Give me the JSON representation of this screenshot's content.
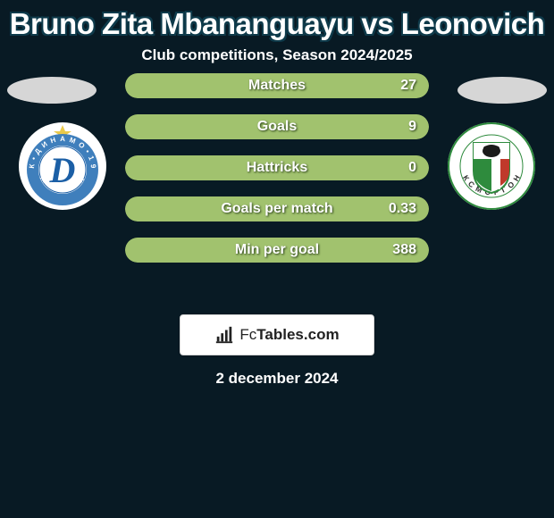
{
  "background_color": "#081a24",
  "title": "Bruno Zita Mbananguayu vs Leonovich",
  "title_color": "#ffffff",
  "title_fontsize": 33,
  "subtitle": "Club competitions, Season 2024/2025",
  "subtitle_fontsize": 17,
  "ellipse_color": "#d6d6d6",
  "badge_left": {
    "bg": "#ffffff",
    "accent": "#1b5fa6",
    "text": "D",
    "ring_text_top": "ДИНАМО",
    "ring_text_bottom": "МИНСК",
    "star_color": "#e9c94b"
  },
  "badge_right": {
    "bg": "#ffffff",
    "shield_green": "#2e8b3d",
    "shield_red": "#c0392b",
    "shield_white": "#ffffff",
    "shield_black": "#1a1a1a",
    "ring_text": "ФК СМОРГОНЬ"
  },
  "stats": {
    "row_border_color": "#5b7c3f",
    "fill_color": "#a1c26e",
    "bg_color": "transparent",
    "label_color": "#ffffff",
    "value_color": "#ffffff",
    "label_fontsize": 16,
    "value_fontsize": 16,
    "rows": [
      {
        "label": "Matches",
        "value": "27",
        "fill_pct": 100
      },
      {
        "label": "Goals",
        "value": "9",
        "fill_pct": 100
      },
      {
        "label": "Hattricks",
        "value": "0",
        "fill_pct": 100
      },
      {
        "label": "Goals per match",
        "value": "0.33",
        "fill_pct": 100
      },
      {
        "label": "Min per goal",
        "value": "388",
        "fill_pct": 100
      }
    ]
  },
  "footer": {
    "brand_prefix": "Fc",
    "brand_suffix": "Tables.com",
    "icon_color": "#222222",
    "box_bg": "#ffffff"
  },
  "date": "2 december 2024"
}
